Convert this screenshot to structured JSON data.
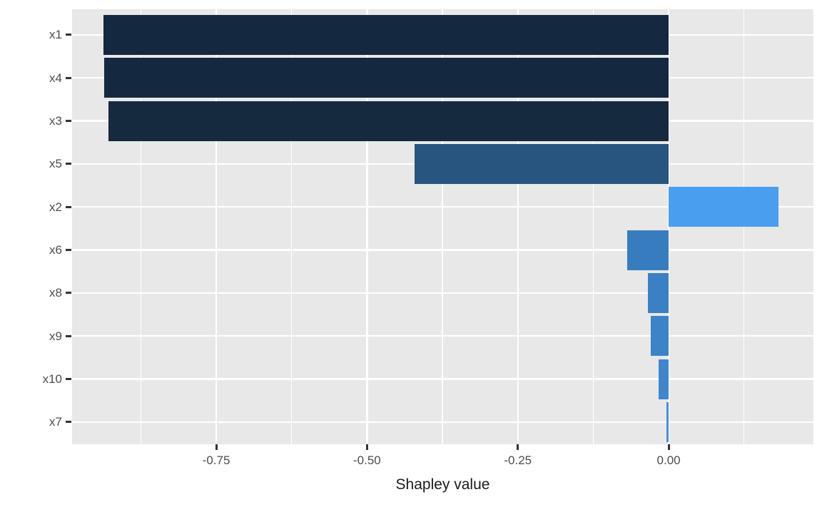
{
  "chart_data": {
    "type": "bar",
    "orientation": "horizontal",
    "title": "",
    "xlabel": "Shapley value",
    "ylabel": "",
    "categories": [
      "x1",
      "x4",
      "x3",
      "x5",
      "x2",
      "x6",
      "x8",
      "x9",
      "x10",
      "x7"
    ],
    "values": [
      -0.937,
      -0.936,
      -0.929,
      -0.421,
      0.182,
      -0.069,
      -0.035,
      -0.03,
      -0.017,
      -0.004
    ],
    "bar_colors": [
      "#14283F",
      "#14283F",
      "#15293F",
      "#27557F",
      "#4A9EF0",
      "#387CC0",
      "#3B80C5",
      "#3D83C8",
      "#3F86CC",
      "#4490DB"
    ],
    "x_tick_values": [
      -0.75,
      -0.5,
      -0.25,
      0.0
    ],
    "x_tick_labels": [
      "-0.75",
      "-0.50",
      "-0.25",
      "0.00"
    ],
    "x_minor_gridlines": [
      -0.875,
      -0.625,
      -0.375,
      -0.125,
      0.125
    ],
    "xlim": [
      -0.989,
      0.24
    ],
    "legend": "none",
    "grid": "on",
    "colors": {
      "panel_background": "#E8E8E8",
      "gridline": "#FFFFFF",
      "tick_mark": "#333333",
      "axis_text": "#4D4D4D",
      "axis_title": "#1A1A1A",
      "figure_background": "#FFFFFF"
    }
  }
}
